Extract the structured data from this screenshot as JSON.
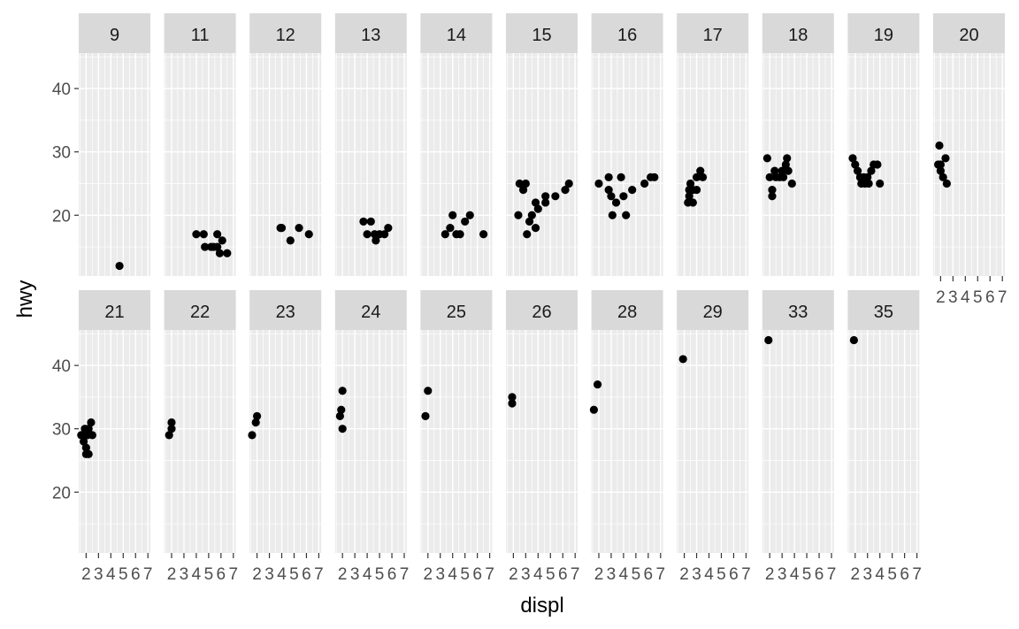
{
  "chart_data": {
    "type": "scatter",
    "facet_variable": "cty",
    "xlabel": "displ",
    "ylabel": "hwy",
    "x_ticks": [
      2,
      3,
      4,
      5,
      6,
      7
    ],
    "x_tick_labels": [
      "2",
      "3",
      "4",
      "5",
      "6",
      "7"
    ],
    "y_ticks": [
      20,
      30,
      40
    ],
    "y_tick_labels": [
      "20",
      "30",
      "40"
    ],
    "xlim": [
      1.4,
      7.2
    ],
    "ylim": [
      10.4,
      45.6
    ],
    "grid": true,
    "colors": {
      "panel_background": "#ebebeb",
      "strip_background": "#d9d9d9",
      "grid": "#ffffff",
      "point": "#000000",
      "tick": "#333333"
    },
    "facets": [
      {
        "label": "9",
        "points": [
          [
            4.7,
            12
          ]
        ]
      },
      {
        "label": "11",
        "points": [
          [
            4.0,
            17
          ],
          [
            4.7,
            15
          ],
          [
            5.2,
            15
          ],
          [
            5.7,
            17
          ],
          [
            4.6,
            17
          ],
          [
            5.4,
            15
          ],
          [
            5.7,
            15
          ],
          [
            6.1,
            16
          ],
          [
            5.9,
            14
          ],
          [
            6.5,
            14
          ]
        ]
      },
      {
        "label": "12",
        "points": [
          [
            3.9,
            18
          ],
          [
            4.0,
            18
          ],
          [
            4.7,
            16
          ],
          [
            5.4,
            18
          ],
          [
            6.2,
            17
          ]
        ]
      },
      {
        "label": "13",
        "points": [
          [
            3.7,
            19
          ],
          [
            4.0,
            17
          ],
          [
            4.3,
            19
          ],
          [
            4.6,
            17
          ],
          [
            4.7,
            16
          ],
          [
            5.0,
            17
          ],
          [
            5.4,
            17
          ],
          [
            5.7,
            18
          ]
        ]
      },
      {
        "label": "14",
        "points": [
          [
            3.4,
            17
          ],
          [
            3.8,
            18
          ],
          [
            4.0,
            20
          ],
          [
            4.3,
            17
          ],
          [
            4.6,
            17
          ],
          [
            5.0,
            19
          ],
          [
            5.4,
            20
          ],
          [
            6.5,
            17
          ]
        ]
      },
      {
        "label": "15",
        "points": [
          [
            2.5,
            25
          ],
          [
            2.8,
            24
          ],
          [
            3.0,
            25
          ],
          [
            2.4,
            20
          ],
          [
            3.1,
            17
          ],
          [
            3.3,
            19
          ],
          [
            3.5,
            20
          ],
          [
            3.8,
            22
          ],
          [
            3.8,
            18
          ],
          [
            4.0,
            21
          ],
          [
            4.6,
            23
          ],
          [
            5.4,
            23
          ],
          [
            6.2,
            24
          ],
          [
            6.5,
            25
          ],
          [
            4.6,
            22
          ]
        ]
      },
      {
        "label": "16",
        "points": [
          [
            2.0,
            25
          ],
          [
            2.8,
            24
          ],
          [
            3.0,
            23
          ],
          [
            3.1,
            20
          ],
          [
            3.4,
            22
          ],
          [
            3.8,
            26
          ],
          [
            4.2,
            20
          ],
          [
            4.0,
            23
          ],
          [
            4.7,
            24
          ],
          [
            6.2,
            26
          ],
          [
            6.5,
            26
          ],
          [
            5.7,
            25
          ],
          [
            2.8,
            26
          ]
        ]
      },
      {
        "label": "17",
        "points": [
          [
            2.3,
            22
          ],
          [
            2.4,
            24
          ],
          [
            2.5,
            25
          ],
          [
            2.7,
            24
          ],
          [
            3.0,
            26
          ],
          [
            3.3,
            27
          ],
          [
            3.5,
            26
          ],
          [
            2.4,
            23
          ],
          [
            2.7,
            22
          ],
          [
            3.0,
            24
          ]
        ]
      },
      {
        "label": "18",
        "points": [
          [
            1.8,
            29
          ],
          [
            2.0,
            26
          ],
          [
            2.2,
            24
          ],
          [
            2.4,
            27
          ],
          [
            2.5,
            26
          ],
          [
            2.8,
            26
          ],
          [
            3.0,
            27
          ],
          [
            3.1,
            26
          ],
          [
            3.3,
            28
          ],
          [
            3.5,
            27
          ],
          [
            3.8,
            25
          ],
          [
            2.2,
            23
          ],
          [
            3.4,
            29
          ]
        ]
      },
      {
        "label": "19",
        "points": [
          [
            1.8,
            29
          ],
          [
            2.0,
            28
          ],
          [
            2.2,
            27
          ],
          [
            2.4,
            26
          ],
          [
            2.5,
            25
          ],
          [
            2.7,
            26
          ],
          [
            2.8,
            25
          ],
          [
            3.0,
            26
          ],
          [
            3.1,
            25
          ],
          [
            3.3,
            27
          ],
          [
            3.5,
            28
          ],
          [
            3.8,
            28
          ],
          [
            4.0,
            25
          ]
        ]
      },
      {
        "label": "20",
        "points": [
          [
            1.8,
            28
          ],
          [
            2.0,
            27
          ],
          [
            2.2,
            26
          ],
          [
            2.5,
            25
          ],
          [
            2.4,
            29
          ],
          [
            1.9,
            31
          ],
          [
            2.0,
            28
          ]
        ]
      },
      {
        "label": "21",
        "points": [
          [
            1.6,
            29
          ],
          [
            1.7,
            29
          ],
          [
            1.8,
            28
          ],
          [
            1.9,
            30
          ],
          [
            2.0,
            26
          ],
          [
            2.1,
            29
          ],
          [
            2.2,
            30
          ],
          [
            2.4,
            31
          ],
          [
            2.5,
            29
          ],
          [
            2.0,
            27
          ],
          [
            2.2,
            26
          ]
        ]
      },
      {
        "label": "22",
        "points": [
          [
            1.8,
            29
          ],
          [
            2.0,
            30
          ],
          [
            2.0,
            31
          ]
        ]
      },
      {
        "label": "23",
        "points": [
          [
            1.6,
            29
          ],
          [
            1.9,
            31
          ],
          [
            2.0,
            32
          ]
        ]
      },
      {
        "label": "24",
        "points": [
          [
            1.8,
            32
          ],
          [
            1.9,
            33
          ],
          [
            2.0,
            30
          ],
          [
            2.0,
            36
          ]
        ]
      },
      {
        "label": "25",
        "points": [
          [
            1.8,
            32
          ],
          [
            2.0,
            36
          ]
        ]
      },
      {
        "label": "26",
        "points": [
          [
            1.9,
            34
          ],
          [
            1.9,
            35
          ]
        ]
      },
      {
        "label": "28",
        "points": [
          [
            1.6,
            33
          ],
          [
            1.9,
            37
          ]
        ]
      },
      {
        "label": "29",
        "points": [
          [
            1.9,
            41
          ]
        ]
      },
      {
        "label": "33",
        "points": [
          [
            1.9,
            44
          ]
        ]
      },
      {
        "label": "35",
        "points": [
          [
            1.9,
            44
          ]
        ]
      }
    ]
  }
}
